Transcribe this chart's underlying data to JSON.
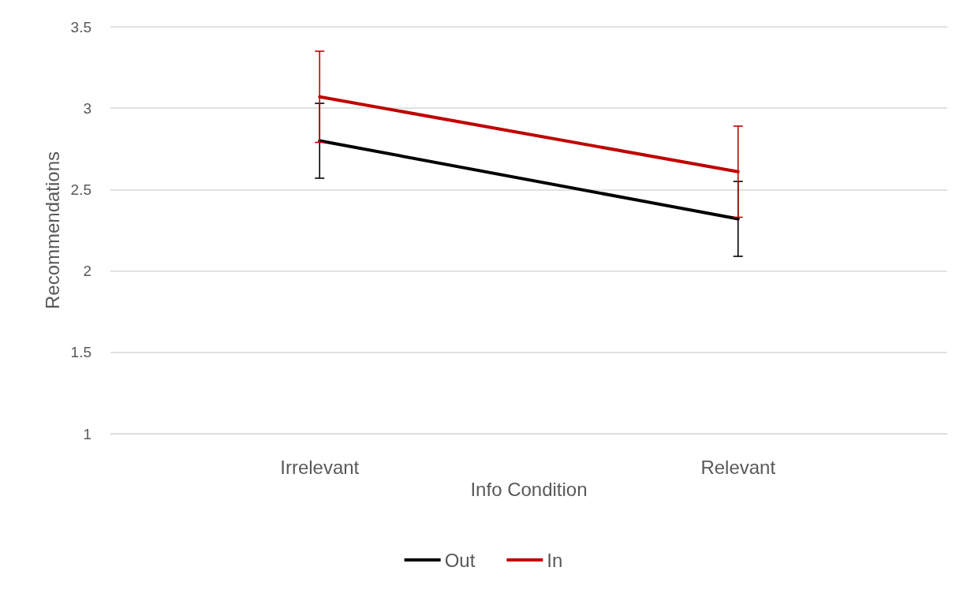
{
  "chart_data": {
    "type": "line",
    "xlabel": "Info Condition",
    "ylabel": "Recommendations",
    "categories": [
      "Irrelevant",
      "Relevant"
    ],
    "series": [
      {
        "name": "Out",
        "color": "#000000",
        "values": [
          2.8,
          2.32
        ],
        "errors": [
          0.23,
          0.23
        ]
      },
      {
        "name": "In",
        "color": "#c00000",
        "values": [
          3.07,
          2.61
        ],
        "errors": [
          0.28,
          0.28
        ]
      }
    ],
    "ylim": [
      1,
      3.5
    ],
    "yticks": [
      1,
      1.5,
      2,
      2.5,
      3,
      3.5
    ],
    "grid": "y",
    "legend": "bottom",
    "marker": "none",
    "line_style": "solid"
  }
}
